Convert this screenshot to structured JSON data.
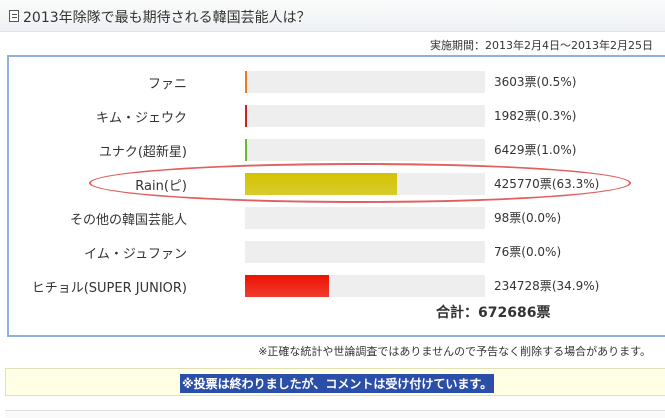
{
  "header": {
    "title": "2013年除隊で最も期待される韓国芸能人は？",
    "icon": "document-icon"
  },
  "period": {
    "label": "実施期間",
    "value": "：2013年2月4日～2013年2月25日"
  },
  "poll": {
    "options": [
      {
        "label": "ファニ",
        "votes": "3603票",
        "percent": "(0.5%)",
        "share": 0.5,
        "color": "#f07a20"
      },
      {
        "label": "キム・ジェウク",
        "votes": "1982票",
        "percent": "(0.3%)",
        "share": 0.3,
        "color": "#cc2222"
      },
      {
        "label": "ユナク(超新星)",
        "votes": "6429票",
        "percent": "(1.0%)",
        "share": 1.0,
        "color": "#66bb33"
      },
      {
        "label": "Rain(ピ)",
        "votes": "425770票",
        "percent": "(63.3%)",
        "share": 63.3,
        "color": "#d4c200"
      },
      {
        "label": "その他の韓国芸能人",
        "votes": "98票",
        "percent": "(0.0%)",
        "share": 0.0,
        "color": "#999999"
      },
      {
        "label": "イム・ジュファン",
        "votes": "76票",
        "percent": "(0.0%)",
        "share": 0.0,
        "color": "#999999"
      },
      {
        "label": "ヒチョル(SUPER JUNIOR)",
        "votes": "234728票",
        "percent": "(34.9%)",
        "share": 34.9,
        "color": "#ee1100"
      }
    ],
    "highlighted_option": "Rain(ピ)",
    "highlight_color": "#e06060",
    "total_label": "合計：",
    "total_value": "672686票"
  },
  "note": "※正確な統計や世論調査ではありませんので予告なく削除する場合があります。",
  "notice": "※投票は終わりましたが、コメントは受け付けています。"
}
